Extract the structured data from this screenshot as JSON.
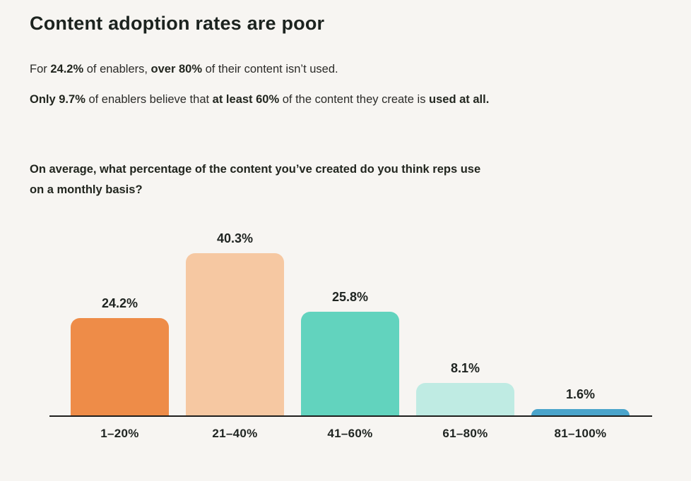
{
  "page": {
    "background_color": "#F7F5F2",
    "text_color": "#2B2B28",
    "heading_color": "#1C231F",
    "axis_color": "#1e1e1c"
  },
  "header": {
    "title": "Content adoption rates are poor"
  },
  "intro": {
    "line1": [
      {
        "text": "For ",
        "bold": false
      },
      {
        "text": "24.2%",
        "bold": true
      },
      {
        "text": " of enablers, ",
        "bold": false
      },
      {
        "text": "over 80%",
        "bold": true
      },
      {
        "text": " of their content isn’t used.",
        "bold": false
      }
    ],
    "line2": [
      {
        "text": "Only 9.7%",
        "bold": true
      },
      {
        "text": " of enablers believe that ",
        "bold": false
      },
      {
        "text": "at least 60%",
        "bold": true
      },
      {
        "text": " of the content they create is ",
        "bold": false
      },
      {
        "text": "used at all.",
        "bold": true
      }
    ]
  },
  "chart_data": {
    "type": "bar",
    "title": "On average, what percentage of the content you’ve created do you think reps use on a monthly basis?",
    "title_lines": [
      "On average, what percentage of the content you’ve created do you think reps use",
      "on a monthly basis?"
    ],
    "categories": [
      "1–20%",
      "21–40%",
      "41–60%",
      "61–80%",
      "81–100%"
    ],
    "values": [
      24.2,
      40.3,
      25.8,
      8.1,
      1.6
    ],
    "value_labels": [
      "24.2%",
      "40.3%",
      "25.8%",
      "8.1%",
      "1.6%"
    ],
    "bar_colors": [
      "#EE8C48",
      "#F6C8A2",
      "#62D3BE",
      "#BFEBE3",
      "#4AA4CB"
    ],
    "xlabel": "",
    "ylabel": "",
    "ylim": [
      0,
      42
    ],
    "grid": false,
    "legend": null,
    "value_labels_position": "above-bars"
  }
}
